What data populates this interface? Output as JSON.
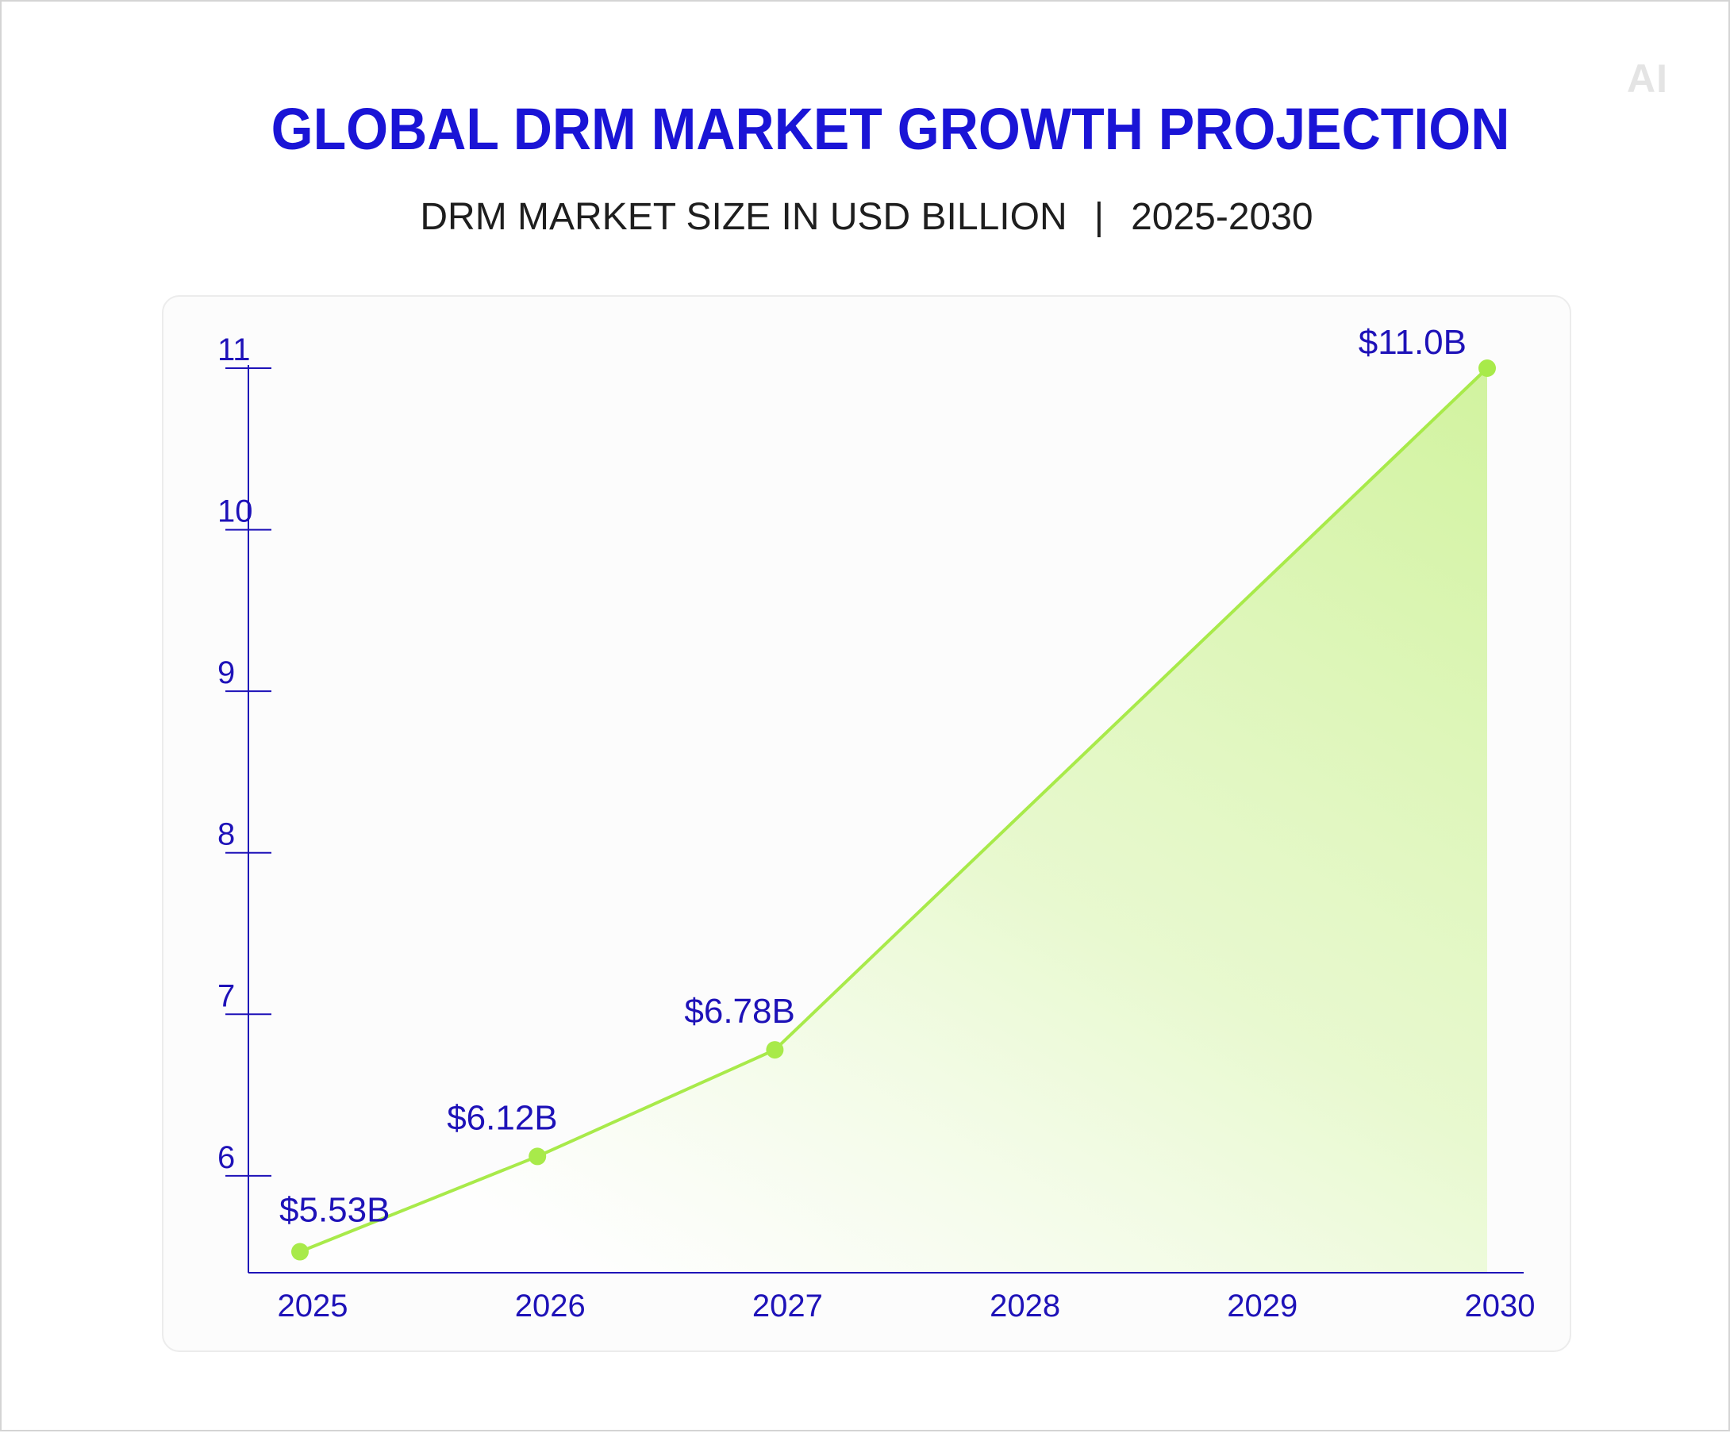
{
  "header": {
    "logo": "AI",
    "title": "GLOBAL DRM MARKET GROWTH PROJECTION",
    "subtitle_left": "DRM MARKET SIZE IN USD BILLION",
    "subtitle_sep": "|",
    "subtitle_right": "2025-2030"
  },
  "colors": {
    "title": "#1a14d6",
    "axis": "#1e12b8",
    "line": "#a8ea4a",
    "fill": "#d6f5a6"
  },
  "chart_data": {
    "type": "area",
    "title": "GLOBAL DRM MARKET GROWTH PROJECTION",
    "subtitle": "DRM MARKET SIZE IN USD BILLION | 2025-2030",
    "xlabel": "",
    "ylabel": "",
    "x": [
      "2025",
      "2026",
      "2027",
      "2028",
      "2029",
      "2030"
    ],
    "points": [
      {
        "x": "2025",
        "y": 5.53,
        "label": "$5.53B"
      },
      {
        "x": "2026",
        "y": 6.12,
        "label": "$6.12B"
      },
      {
        "x": "2027",
        "y": 6.78,
        "label": "$6.78B"
      },
      {
        "x": "2030",
        "y": 11.0,
        "label": "$11.0B"
      }
    ],
    "yticks": [
      "6",
      "7",
      "8",
      "9",
      "10",
      "11"
    ],
    "ylim": [
      5.4,
      11
    ],
    "grid": false,
    "legend": "none"
  }
}
